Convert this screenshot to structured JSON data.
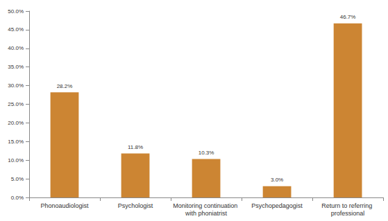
{
  "chart_data": {
    "type": "bar",
    "categories": [
      "Phonoaudiologist",
      "Psychologist",
      "Monitoring continuation with phoniatrist",
      "Psychopedagogist",
      "Return to referring professional"
    ],
    "values": [
      28.2,
      11.8,
      10.3,
      3.0,
      46.7
    ],
    "value_labels": [
      "28.2%",
      "11.8%",
      "10.3%",
      "3.0%",
      "46.7%"
    ],
    "data_labels": true,
    "color": "#cc8533",
    "ylim": [
      0,
      50
    ],
    "yticks": [
      {
        "value": 0,
        "label": "0.0%"
      },
      {
        "value": 5,
        "label": "5.0%"
      },
      {
        "value": 10,
        "label": "10.0%"
      },
      {
        "value": 15,
        "label": "15.0%"
      },
      {
        "value": 20,
        "label": "20.0%"
      },
      {
        "value": 25,
        "label": "25.0%"
      },
      {
        "value": 30,
        "label": "30.0%"
      },
      {
        "value": 35,
        "label": "35.0%"
      },
      {
        "value": 40,
        "label": "40.0%"
      },
      {
        "value": 45,
        "label": "45.0%"
      },
      {
        "value": 50,
        "label": "50.0%"
      }
    ],
    "grid": false
  }
}
